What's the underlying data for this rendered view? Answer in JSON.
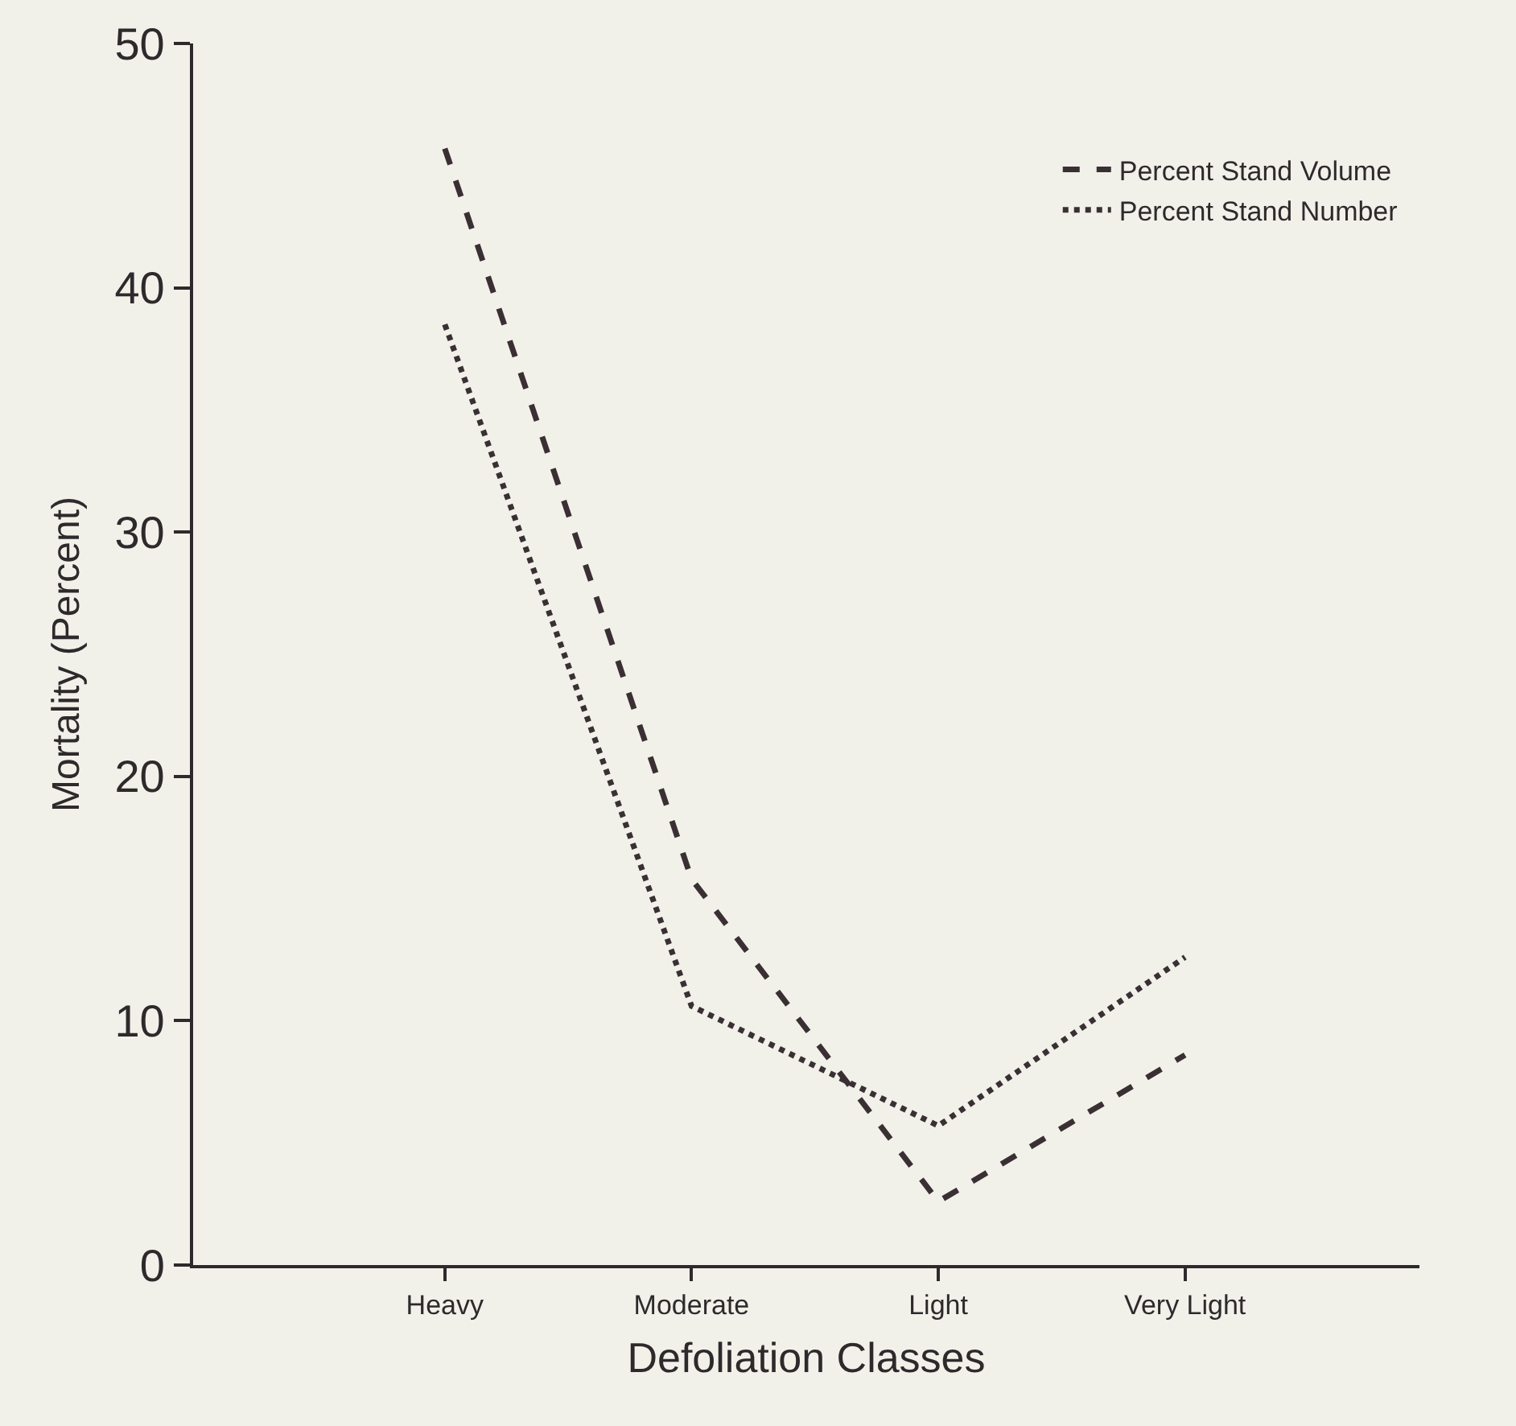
{
  "chart_data": {
    "type": "line",
    "xlabel": "Defoliation Classes",
    "ylabel": "Mortality (Percent)",
    "categories": [
      "Heavy",
      "Moderate",
      "Light",
      "Very Light"
    ],
    "series": [
      {
        "name": "Percent Stand Volume",
        "color": "#3a3034",
        "line_style": "dashed",
        "values": [
          45.7,
          15.8,
          2.6,
          8.6
        ]
      },
      {
        "name": "Percent Stand Number",
        "color": "#3a3034",
        "line_style": "dotted",
        "values": [
          38.5,
          10.6,
          5.7,
          12.6
        ]
      }
    ],
    "ylim": [
      0,
      50
    ],
    "yticks": [
      0,
      10,
      20,
      30,
      40,
      50
    ],
    "grid": false,
    "legend": "top right",
    "marker": "none"
  }
}
